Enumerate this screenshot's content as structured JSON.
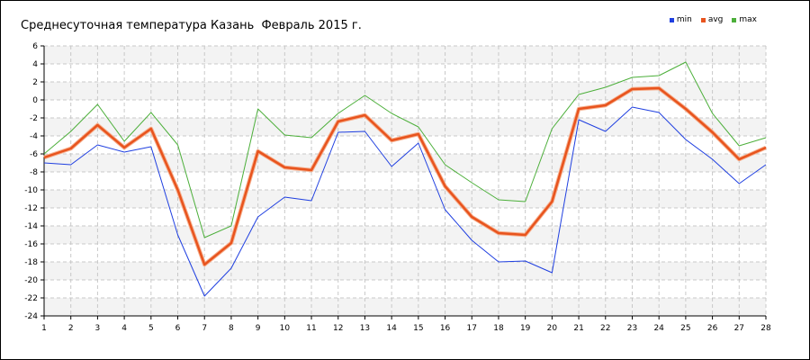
{
  "chart_data": {
    "type": "line",
    "title": "Среднесуточная температура Казань  Февраль 2015 г.",
    "xlabel": "",
    "ylabel": "",
    "x": [
      1,
      2,
      3,
      4,
      5,
      6,
      7,
      8,
      9,
      10,
      11,
      12,
      13,
      14,
      15,
      16,
      17,
      18,
      19,
      20,
      21,
      22,
      23,
      24,
      25,
      26,
      27,
      28
    ],
    "ylim": [
      -24,
      6
    ],
    "yticks": [
      6,
      4,
      2,
      0,
      -2,
      -4,
      -6,
      -8,
      -10,
      -12,
      -14,
      -16,
      -18,
      -20,
      -22,
      -24
    ],
    "grid": true,
    "legend_position": "top-right",
    "series": [
      {
        "name": "min",
        "color": "#1f3fe0",
        "values": [
          -7.0,
          -7.2,
          -5.0,
          -5.8,
          -5.2,
          -15.0,
          -21.8,
          -18.7,
          -13.0,
          -10.8,
          -11.2,
          -3.6,
          -3.5,
          -7.4,
          -4.8,
          -12.2,
          -15.6,
          -18.0,
          -17.9,
          -19.2,
          -2.2,
          -3.5,
          -0.8,
          -1.4,
          -4.4,
          -6.6,
          -9.3,
          -7.2
        ]
      },
      {
        "name": "avg",
        "color": "#e8541e",
        "values": [
          -6.4,
          -5.4,
          -2.8,
          -5.3,
          -3.2,
          -10.0,
          -18.3,
          -15.9,
          -5.7,
          -7.5,
          -7.8,
          -2.4,
          -1.7,
          -4.5,
          -3.8,
          -9.6,
          -13.0,
          -14.8,
          -15.0,
          -11.3,
          -1.0,
          -0.6,
          1.2,
          1.3,
          -1.0,
          -3.6,
          -6.6,
          -5.3
        ]
      },
      {
        "name": "max",
        "color": "#4caf3a",
        "values": [
          -6.0,
          -3.5,
          -0.5,
          -4.6,
          -1.4,
          -5.0,
          -15.3,
          -14.0,
          -1.0,
          -3.9,
          -4.2,
          -1.5,
          0.5,
          -1.5,
          -3.0,
          -7.2,
          -9.2,
          -11.1,
          -11.3,
          -3.2,
          0.6,
          1.4,
          2.5,
          2.7,
          4.2,
          -1.5,
          -5.1,
          -4.2
        ]
      }
    ]
  }
}
